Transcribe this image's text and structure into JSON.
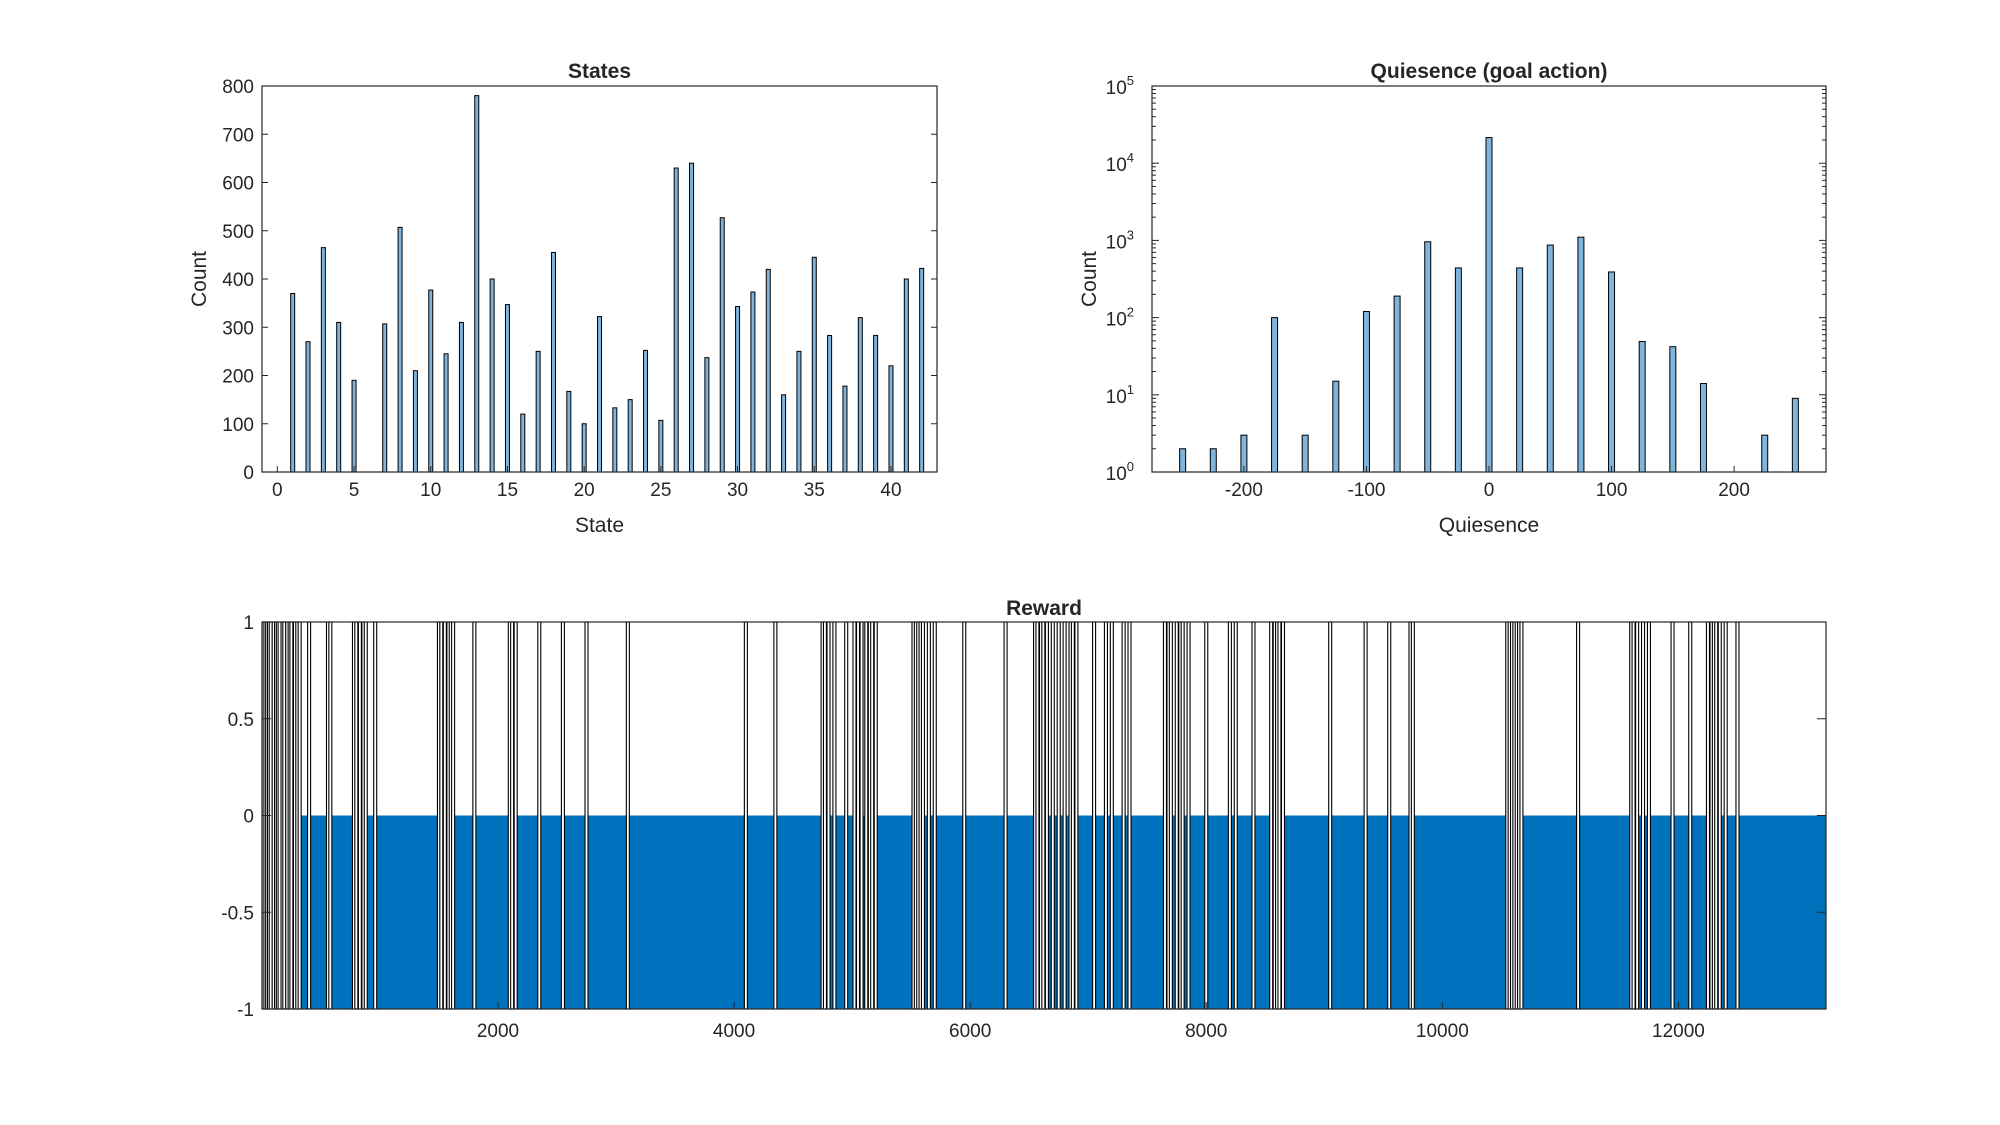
{
  "figure": {
    "background": "#ffffff"
  },
  "colors": {
    "histogram_face": "#7fb4dd",
    "bar_edge": "#000000",
    "reward_face": "#0072bd"
  },
  "chart_data": [
    {
      "id": "states",
      "type": "bar",
      "title": "States",
      "xlabel": "State",
      "ylabel": "Count",
      "xlim": [
        -1,
        43
      ],
      "ylim": [
        0,
        800
      ],
      "xticks": [
        0,
        5,
        10,
        15,
        20,
        25,
        30,
        35,
        40
      ],
      "yticks": [
        0,
        100,
        200,
        300,
        400,
        500,
        600,
        700,
        800
      ],
      "x": [
        1,
        2,
        3,
        4,
        5,
        6,
        7,
        8,
        9,
        10,
        11,
        12,
        13,
        14,
        15,
        16,
        17,
        18,
        19,
        20,
        21,
        22,
        23,
        24,
        25,
        26,
        27,
        28,
        29,
        30,
        31,
        32,
        33,
        34,
        35,
        36,
        37,
        38,
        39,
        40,
        41,
        42
      ],
      "values": [
        370,
        270,
        465,
        310,
        190,
        0,
        307,
        507,
        210,
        377,
        245,
        310,
        780,
        400,
        347,
        120,
        250,
        455,
        167,
        100,
        322,
        133,
        150,
        252,
        107,
        630,
        640,
        237,
        527,
        343,
        373,
        420,
        160,
        250,
        445,
        283,
        178,
        320,
        283,
        220,
        400,
        422
      ],
      "grid": false
    },
    {
      "id": "quiesence",
      "type": "bar",
      "title": "Quiesence (goal action)",
      "xlabel": "Quiesence",
      "ylabel": "Count",
      "yscale": "log",
      "xlim": [
        -275,
        275
      ],
      "ylim": [
        1,
        100000
      ],
      "xticks": [
        -200,
        -100,
        0,
        100,
        200
      ],
      "yticks": [
        "10^0",
        "10^1",
        "10^2",
        "10^3",
        "10^4",
        "10^5"
      ],
      "x": [
        -250,
        -225,
        -200,
        -175,
        -150,
        -125,
        -100,
        -75,
        -50,
        -25,
        0,
        25,
        50,
        75,
        100,
        125,
        150,
        175,
        200,
        225,
        250
      ],
      "values": [
        2,
        2,
        3,
        100,
        3,
        15,
        120,
        190,
        960,
        440,
        21500,
        440,
        870,
        1100,
        390,
        49,
        42,
        14,
        0,
        3,
        9
      ],
      "grid": false
    },
    {
      "id": "reward",
      "type": "bar",
      "title": "Reward",
      "xlabel": "",
      "ylabel": "",
      "xlim": [
        1,
        13250
      ],
      "ylim": [
        -1,
        1
      ],
      "xticks": [
        2000,
        4000,
        6000,
        8000,
        10000,
        12000
      ],
      "yticks": [
        -1,
        -0.5,
        0,
        0.5,
        1
      ],
      "baseline_value": -1,
      "positive_steps": [
        15,
        30,
        45,
        60,
        75,
        100,
        120,
        135,
        150,
        175,
        190,
        215,
        235,
        250,
        280,
        300,
        320,
        400,
        560,
        580,
        780,
        800,
        830,
        860,
        880,
        960,
        1500,
        1520,
        1550,
        1580,
        1600,
        1620,
        1800,
        2100,
        2120,
        2150,
        2350,
        2550,
        2750,
        3100,
        4100,
        4350,
        4750,
        4770,
        4800,
        4850,
        4950,
        5020,
        5050,
        5080,
        5120,
        5150,
        5170,
        5200,
        5520,
        5540,
        5560,
        5580,
        5600,
        5650,
        5700,
        5950,
        6300,
        6550,
        6570,
        6600,
        6620,
        6650,
        6700,
        6750,
        6800,
        6850,
        6870,
        6900,
        7050,
        7150,
        7200,
        7300,
        7350,
        7650,
        7680,
        7700,
        7750,
        7780,
        7800,
        7850,
        8000,
        8200,
        8250,
        8400,
        8550,
        8580,
        8600,
        8620,
        8650,
        9050,
        9350,
        9550,
        9730,
        9750,
        10550,
        10570,
        10590,
        10610,
        10630,
        10650,
        10670,
        11150,
        11600,
        11620,
        11650,
        11700,
        11750,
        11950,
        12100,
        12250,
        12280,
        12300,
        12320,
        12350,
        12400,
        12500
      ]
    }
  ]
}
